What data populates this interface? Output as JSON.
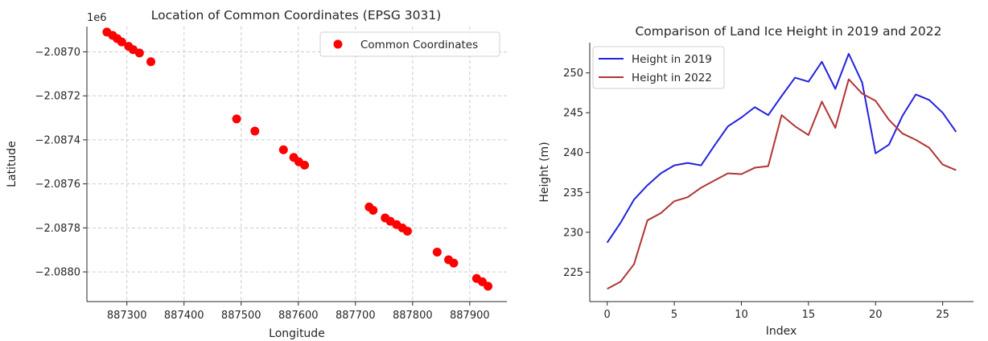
{
  "chart_data": [
    {
      "type": "scatter",
      "title": "Location of Common Coordinates (EPSG 3031)",
      "xlabel": "Longitude",
      "ylabel": "Latitude",
      "offset_text": "1e6",
      "xlim": [
        887230,
        887965
      ],
      "ylim": [
        -2088135,
        -2086885
      ],
      "xticks": [
        887300,
        887400,
        887500,
        887600,
        887700,
        887800,
        887900
      ],
      "xtick_labels": [
        "887300",
        "887400",
        "887500",
        "887600",
        "887700",
        "887800",
        "887900"
      ],
      "yticks": [
        -2088000,
        -2087800,
        -2087600,
        -2087400,
        -2087200,
        -2087000
      ],
      "ytick_labels": [
        "−2.0880",
        "−2.0878",
        "−2.0876",
        "−2.0874",
        "−2.0872",
        "−2.0870"
      ],
      "grid": true,
      "grid_style": "dashed",
      "legend_position": "upper right",
      "color": "#ff0000",
      "series": [
        {
          "name": "Common Coordinates",
          "points": [
            [
              887265,
              -2086910
            ],
            [
              887275,
              -2086925
            ],
            [
              887283,
              -2086940
            ],
            [
              887291,
              -2086955
            ],
            [
              887303,
              -2086975
            ],
            [
              887311,
              -2086990
            ],
            [
              887322,
              -2087005
            ],
            [
              887342,
              -2087045
            ],
            [
              887492,
              -2087305
            ],
            [
              887524,
              -2087360
            ],
            [
              887574,
              -2087445
            ],
            [
              887592,
              -2087480
            ],
            [
              887601,
              -2087500
            ],
            [
              887611,
              -2087515
            ],
            [
              887724,
              -2087705
            ],
            [
              887731,
              -2087720
            ],
            [
              887752,
              -2087755
            ],
            [
              887761,
              -2087770
            ],
            [
              887772,
              -2087785
            ],
            [
              887782,
              -2087800
            ],
            [
              887791,
              -2087815
            ],
            [
              887843,
              -2087910
            ],
            [
              887863,
              -2087945
            ],
            [
              887872,
              -2087960
            ],
            [
              887912,
              -2088030
            ],
            [
              887922,
              -2088045
            ],
            [
              887932,
              -2088065
            ]
          ]
        }
      ]
    },
    {
      "type": "line",
      "title": "Comparison of Land Ice Height in 2019 and 2022",
      "xlabel": "Index",
      "ylabel": "Height (m)",
      "xlim": [
        -1.3,
        27.3
      ],
      "ylim": [
        221.3,
        253.8
      ],
      "xticks": [
        0,
        5,
        10,
        15,
        20,
        25
      ],
      "yticks": [
        225,
        230,
        235,
        240,
        245,
        250
      ],
      "grid": false,
      "legend_position": "upper left",
      "x": [
        0,
        1,
        2,
        3,
        4,
        5,
        6,
        7,
        8,
        9,
        10,
        11,
        12,
        13,
        14,
        15,
        16,
        17,
        18,
        19,
        20,
        21,
        22,
        23,
        24,
        25,
        26
      ],
      "series": [
        {
          "name": "Height in 2019",
          "color": "#2222dd",
          "values": [
            228.7,
            231.2,
            234.1,
            235.9,
            237.4,
            238.4,
            238.7,
            238.4,
            240.9,
            243.3,
            244.4,
            245.7,
            244.7,
            247.1,
            249.4,
            248.9,
            251.4,
            248.0,
            252.4,
            248.8,
            239.9,
            241.0,
            244.6,
            247.3,
            246.6,
            245.0,
            242.6
          ]
        },
        {
          "name": "Height in 2022",
          "color": "#b23434",
          "values": [
            222.9,
            223.8,
            226.0,
            231.5,
            232.4,
            233.9,
            234.4,
            235.6,
            236.5,
            237.4,
            237.3,
            238.1,
            238.3,
            244.7,
            243.3,
            242.2,
            246.4,
            243.1,
            249.2,
            247.4,
            246.5,
            244.1,
            242.4,
            241.6,
            240.6,
            238.5,
            237.8
          ]
        }
      ]
    }
  ]
}
